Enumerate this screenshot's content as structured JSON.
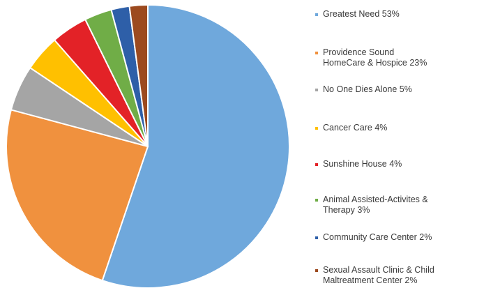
{
  "chart_data": {
    "type": "pie",
    "title": "",
    "slices": [
      {
        "label": "Greatest Need",
        "pct_label": "53%",
        "value": 53,
        "color": "#6fa8dc"
      },
      {
        "label": "Providence Sound HomeCare & Hospice",
        "pct_label": "23%",
        "value": 23,
        "color": "#f0913e"
      },
      {
        "label": "No One Dies Alone",
        "pct_label": "5%",
        "value": 5,
        "color": "#a5a5a5"
      },
      {
        "label": "Cancer Care",
        "pct_label": "4%",
        "value": 4,
        "color": "#ffc000"
      },
      {
        "label": "Sunshine House",
        "pct_label": "4%",
        "value": 4,
        "color": "#e32227"
      },
      {
        "label": "Animal Assisted-Activites & Therapy",
        "pct_label": "3%",
        "value": 3,
        "color": "#70ad47"
      },
      {
        "label": "Community Care Center",
        "pct_label": "2%",
        "value": 2,
        "color": "#2e5fa8"
      },
      {
        "label": "Sexual Assault Clinic & Child Maltreatment Center",
        "pct_label": "2%",
        "value": 2,
        "color": "#9c4a1f"
      }
    ],
    "legend_position": "right"
  },
  "legend": {
    "items": [
      {
        "lines": [
          "Greatest Need  53%"
        ]
      },
      {
        "lines": [
          "Providence Sound",
          "HomeCare & Hospice  23%"
        ]
      },
      {
        "lines": [
          "No One Dies Alone  5%"
        ]
      },
      {
        "lines": [
          "Cancer Care  4%"
        ]
      },
      {
        "lines": [
          "Sunshine House  4%"
        ]
      },
      {
        "lines": [
          "Animal Assisted-Activites &",
          "Therapy  3%"
        ]
      },
      {
        "lines": [
          "Community Care Center  2%"
        ]
      },
      {
        "lines": [
          "Sexual Assault Clinic & Child",
          "Maltreatment Center  2%"
        ]
      }
    ]
  }
}
